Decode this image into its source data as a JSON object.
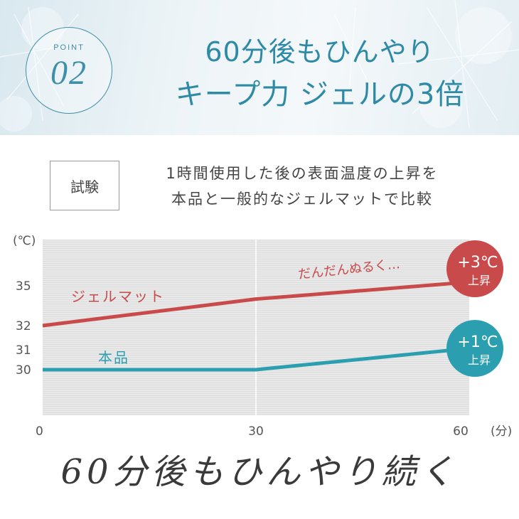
{
  "header": {
    "badge_label": "POINT",
    "badge_number": "02",
    "title_line1": "60分後もひんやり",
    "title_line2": "キープ力 ジェルの3倍"
  },
  "test": {
    "label": "試験",
    "line1": "1時間使用した後の表面温度の上昇を",
    "line2": "本品と一般的なジェルマットで比較"
  },
  "chart_data": {
    "type": "line",
    "y_unit": "(℃)",
    "x_unit": "(分)",
    "x_ticks": [
      0,
      30,
      60
    ],
    "y_ticks": [
      30,
      31,
      32,
      35
    ],
    "series": [
      {
        "name": "ジェルマット",
        "color": "#c94a4a",
        "x": [
          0,
          30,
          60
        ],
        "y": [
          32,
          34,
          35.2
        ],
        "annotation": "だんだんぬるく…",
        "badge_value": "+3℃",
        "badge_text": "上昇"
      },
      {
        "name": "本品",
        "color": "#2b9fb0",
        "x": [
          0,
          30,
          60
        ],
        "y": [
          30,
          30,
          31
        ],
        "annotation": "",
        "badge_value": "+1℃",
        "badge_text": "上昇"
      }
    ],
    "grid": true
  },
  "footer": {
    "text": "60分後もひんやり続く"
  }
}
